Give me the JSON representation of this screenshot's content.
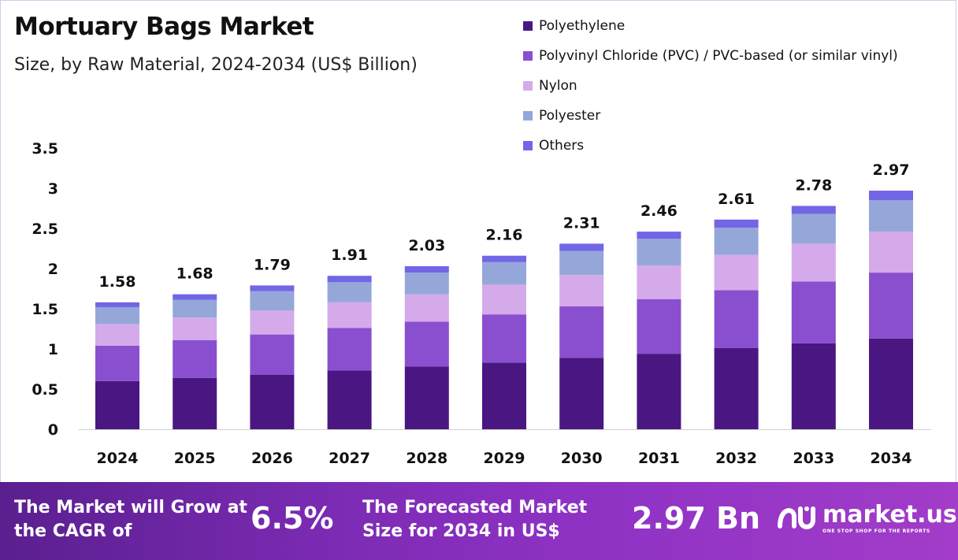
{
  "header": {
    "title": "Mortuary Bags Market",
    "subtitle": "Size, by Raw Material, 2024-2034 (US$ Billion)"
  },
  "chart_data": {
    "type": "bar",
    "stacked": true,
    "categories": [
      "2024",
      "2025",
      "2026",
      "2027",
      "2028",
      "2029",
      "2030",
      "2031",
      "2032",
      "2033",
      "2034"
    ],
    "totals": [
      "1.58",
      "1.68",
      "1.79",
      "1.91",
      "2.03",
      "2.16",
      "2.31",
      "2.46",
      "2.61",
      "2.78",
      "2.97"
    ],
    "series": [
      {
        "name": "Polyethylene",
        "color": "#4a1782",
        "values": [
          0.6,
          0.64,
          0.68,
          0.73,
          0.78,
          0.83,
          0.89,
          0.94,
          1.01,
          1.07,
          1.13
        ]
      },
      {
        "name": "Polyvinyl Chloride (PVC) / PVC-based (or similar vinyl)",
        "color": "#8a4fcf",
        "values": [
          0.44,
          0.47,
          0.5,
          0.53,
          0.56,
          0.6,
          0.64,
          0.68,
          0.72,
          0.77,
          0.82
        ]
      },
      {
        "name": "Nylon",
        "color": "#d4aaea",
        "values": [
          0.27,
          0.28,
          0.3,
          0.32,
          0.34,
          0.37,
          0.39,
          0.42,
          0.44,
          0.47,
          0.51
        ]
      },
      {
        "name": "Polyester",
        "color": "#95a7d9",
        "values": [
          0.21,
          0.22,
          0.24,
          0.25,
          0.27,
          0.28,
          0.3,
          0.33,
          0.34,
          0.37,
          0.39
        ]
      },
      {
        "name": "Others",
        "color": "#7166e6",
        "values": [
          0.06,
          0.07,
          0.07,
          0.08,
          0.08,
          0.08,
          0.09,
          0.09,
          0.1,
          0.1,
          0.12
        ]
      }
    ],
    "y_ticks": [
      "0",
      "0.5",
      "1",
      "1.5",
      "2",
      "2.5",
      "3",
      "3.5"
    ],
    "ylim": [
      0,
      3.5
    ],
    "grid": false,
    "legend_position": "top-right"
  },
  "banner": {
    "cagr_text": "The Market will Grow at the CAGR of",
    "cagr_value": "6.5%",
    "forecast_text": "The Forecasted Market Size for 2034 in US$",
    "forecast_value": "2.97 Bn",
    "logo_name": "market.us",
    "logo_tagline": "ONE STOP SHOP FOR THE REPORTS"
  }
}
